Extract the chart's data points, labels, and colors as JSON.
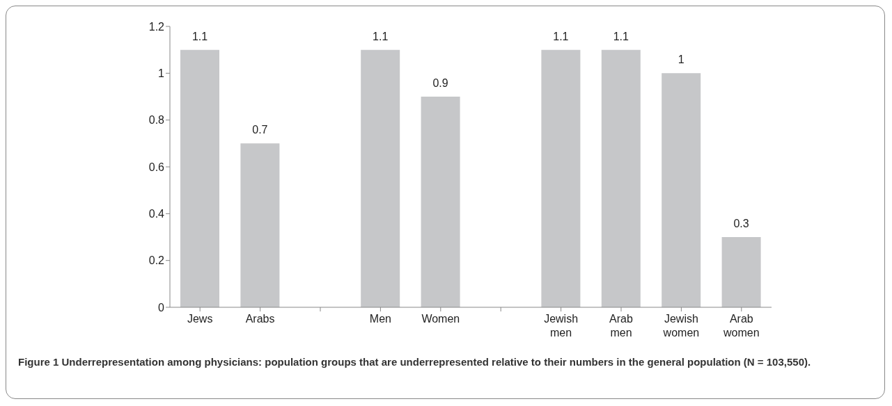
{
  "chart_data": {
    "type": "bar",
    "categories": [
      "Jews",
      "Arabs",
      null,
      "Men",
      "Women",
      null,
      "Jewish men",
      "Arab men",
      "Jewish women",
      "Arab women"
    ],
    "values": [
      1.1,
      0.7,
      null,
      1.1,
      0.9,
      null,
      1.1,
      1.1,
      1,
      0.3
    ],
    "color": "#c6c7c9",
    "ylim": [
      0,
      1.2
    ],
    "yticks": [
      0,
      0.2,
      0.4,
      0.6,
      0.8,
      1,
      1.2
    ],
    "data_labels": true,
    "grid": false,
    "legend": false,
    "annotations": [
      "Figure 1 Underrepresentation among physicians: population groups that are underrepresented relative to their numbers in the general population (N = 103,550)."
    ]
  }
}
